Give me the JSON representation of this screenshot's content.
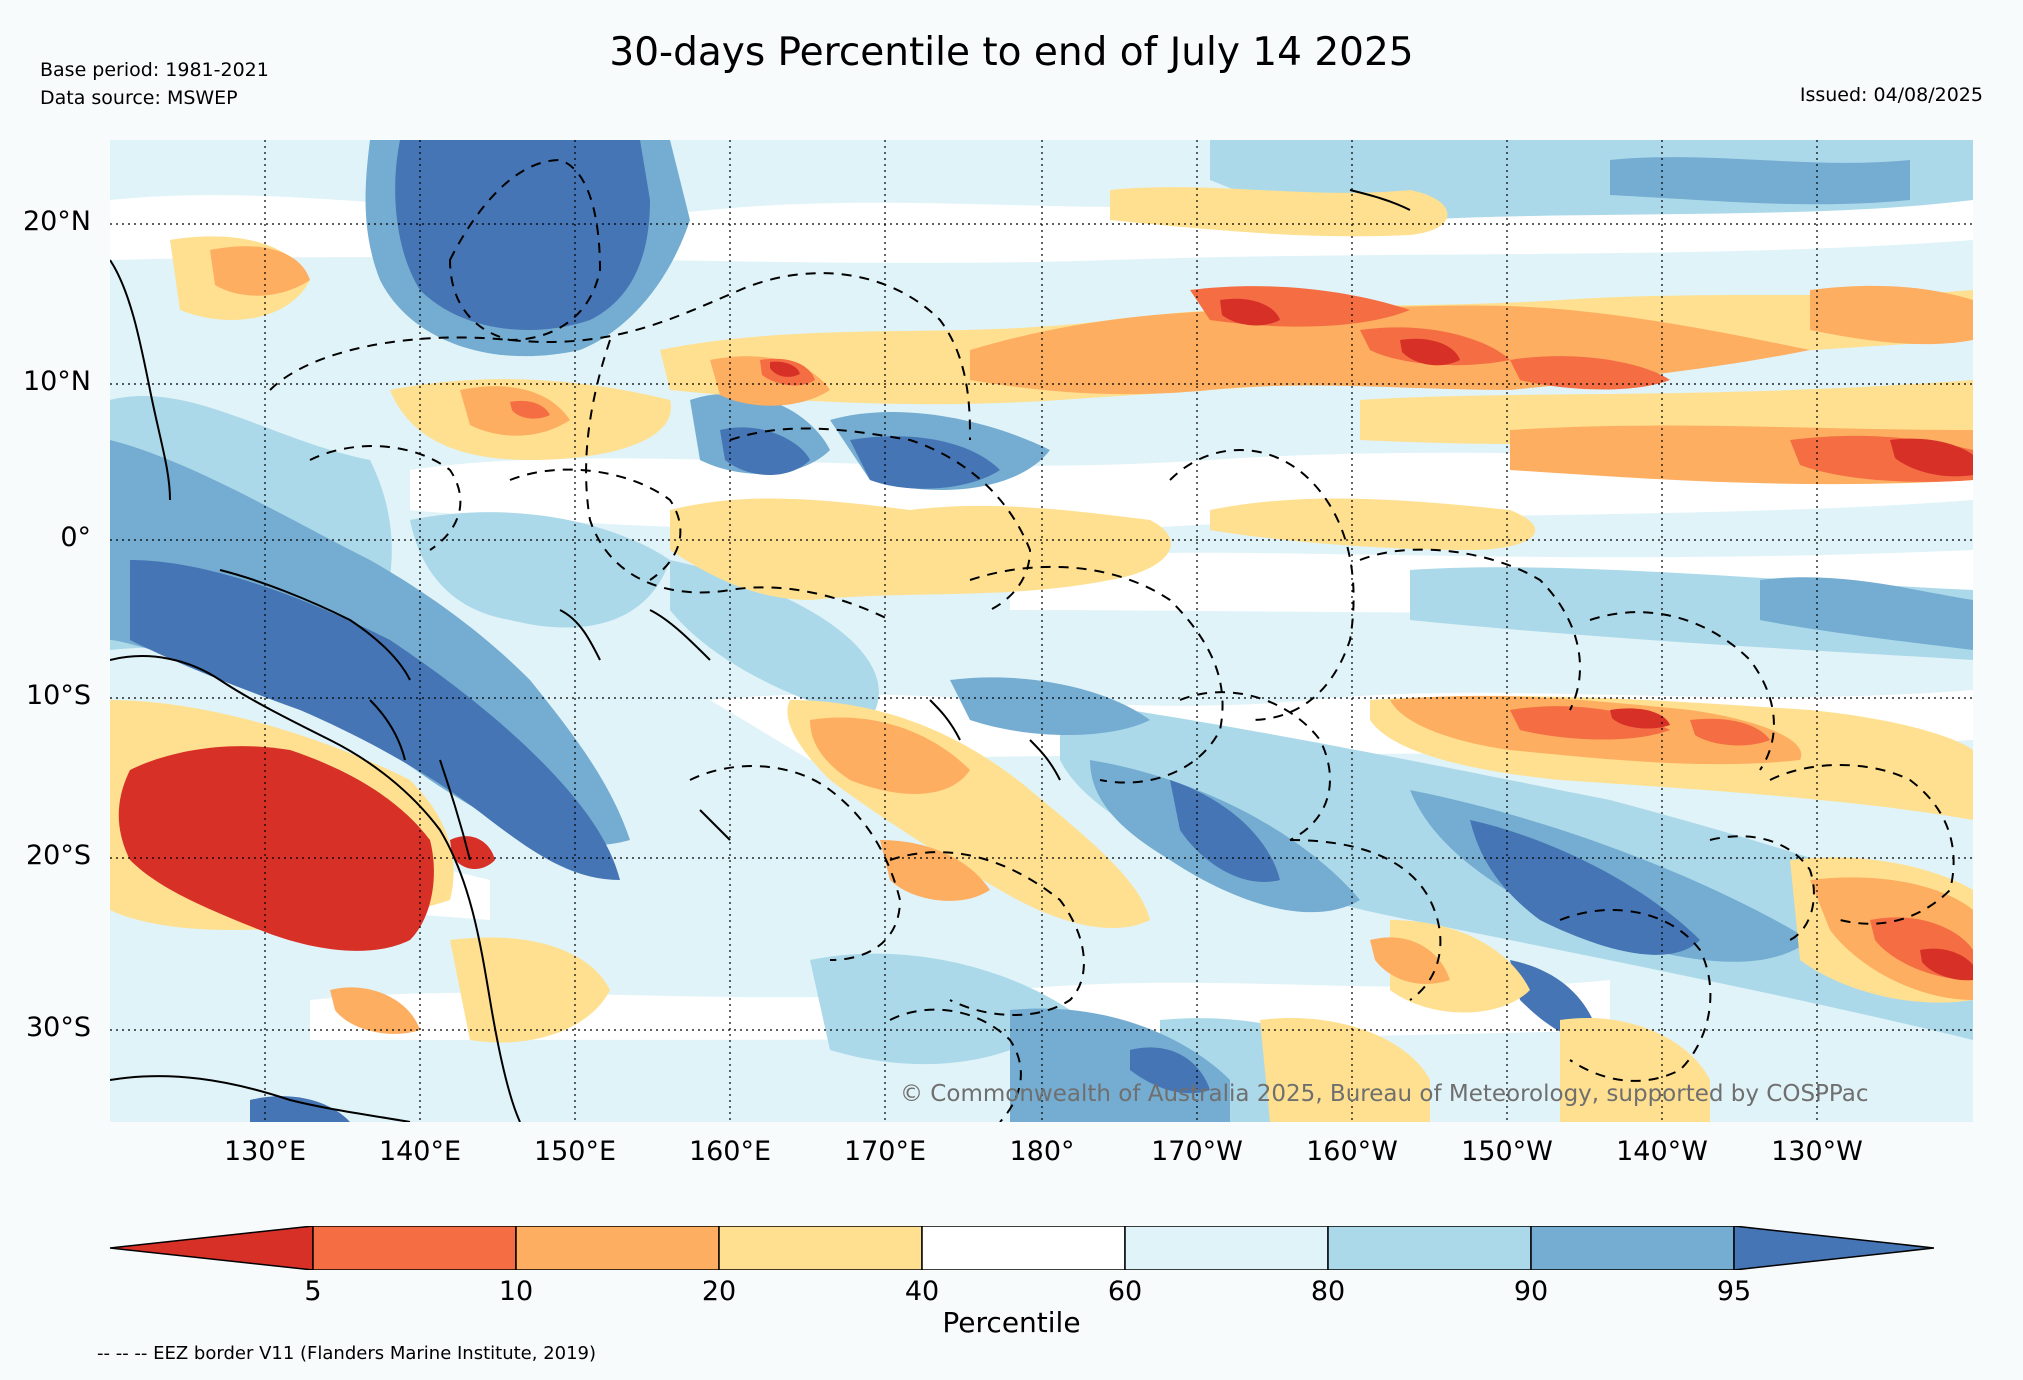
{
  "title": "30-days Percentile to end of July 14 2025",
  "base_period": "Base period: 1981-2021",
  "data_source": "Data source: MSWEP",
  "issued": "Issued: 04/08/2025",
  "copyright": "© Commonwealth of Australia 2025, Bureau of Meteorology, supported by COSPPac",
  "footnote": "-- -- -- EEZ border V11 (Flanders Marine Institute, 2019)",
  "lat_labels": [
    "20°N",
    "10°N",
    "0°",
    "10°S",
    "20°S",
    "30°S"
  ],
  "lon_labels": [
    "130°E",
    "140°E",
    "150°E",
    "160°E",
    "170°E",
    "180°",
    "170°W",
    "160°W",
    "150°W",
    "140°W",
    "130°W"
  ],
  "colorbar": {
    "title": "Percentile",
    "ticks": [
      "5",
      "10",
      "20",
      "40",
      "60",
      "80",
      "90",
      "95"
    ],
    "colors": [
      "#d73027",
      "#f46d43",
      "#fdae61",
      "#fee090",
      "#ffffff",
      "#e0f3f8",
      "#abd9e9",
      "#74add1",
      "#4575b4"
    ]
  },
  "colors": {
    "background": "#f7fbfc",
    "very_wet": "#4575b4",
    "very_dry": "#d73027"
  }
}
